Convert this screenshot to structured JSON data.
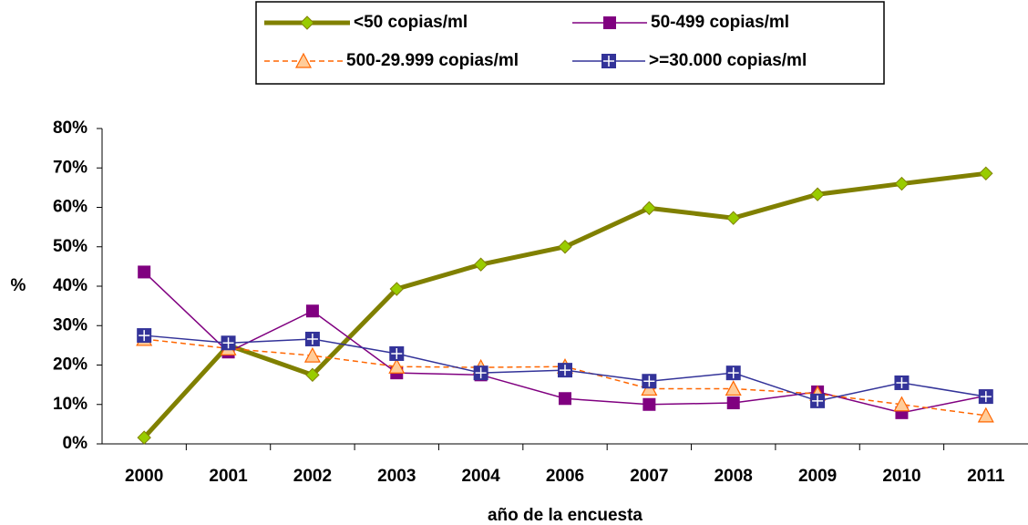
{
  "chart_data": {
    "type": "line",
    "categories": [
      "2000",
      "2001",
      "2002",
      "2003",
      "2004",
      "2006",
      "2007",
      "2008",
      "2009",
      "2010",
      "2011"
    ],
    "series": [
      {
        "name": "<50 copias/ml",
        "color": "#808000",
        "marker": "diamond",
        "marker_color": "#99cc00",
        "line_width": 5,
        "dashed": false,
        "values": [
          1.6,
          25,
          17.5,
          39.3,
          45.5,
          50,
          59.8,
          57.3,
          63.3,
          66,
          68.6
        ]
      },
      {
        "name": "50-499 copias/ml",
        "color": "#800080",
        "marker": "square",
        "marker_color": "#800080",
        "line_width": 1.5,
        "dashed": false,
        "values": [
          43.6,
          23.3,
          33.7,
          18,
          17.5,
          11.5,
          10,
          10.4,
          13.2,
          7.9,
          12.2
        ]
      },
      {
        "name": "500-29.999 copias/ml",
        "color": "#ff6600",
        "marker": "triangle",
        "marker_color": "#ffcc99",
        "line_width": 1.5,
        "dashed": true,
        "values": [
          26.6,
          24.2,
          22.4,
          19.6,
          19.4,
          19.6,
          14,
          14,
          12.7,
          10,
          7.2
        ]
      },
      {
        "name": ">=30.000 copias/ml",
        "color": "#333399",
        "marker": "plus-square",
        "marker_color": "#333399",
        "line_width": 1.5,
        "dashed": false,
        "values": [
          27.5,
          25.6,
          26.6,
          22.9,
          18,
          18.7,
          15.9,
          18,
          10.9,
          15.5,
          12
        ]
      }
    ],
    "ylim": [
      0,
      80
    ],
    "yticks": [
      {
        "value": 0,
        "label": "0%"
      },
      {
        "value": 10,
        "label": "10%"
      },
      {
        "value": 20,
        "label": "20%"
      },
      {
        "value": 30,
        "label": "30%"
      },
      {
        "value": 40,
        "label": "40%"
      },
      {
        "value": 50,
        "label": "50%"
      },
      {
        "value": 60,
        "label": "60%"
      },
      {
        "value": 70,
        "label": "70%"
      },
      {
        "value": 80,
        "label": "80%"
      }
    ],
    "y_label": "%",
    "x_label": "año de la encuesta",
    "grid": false,
    "legend_position": "top"
  }
}
